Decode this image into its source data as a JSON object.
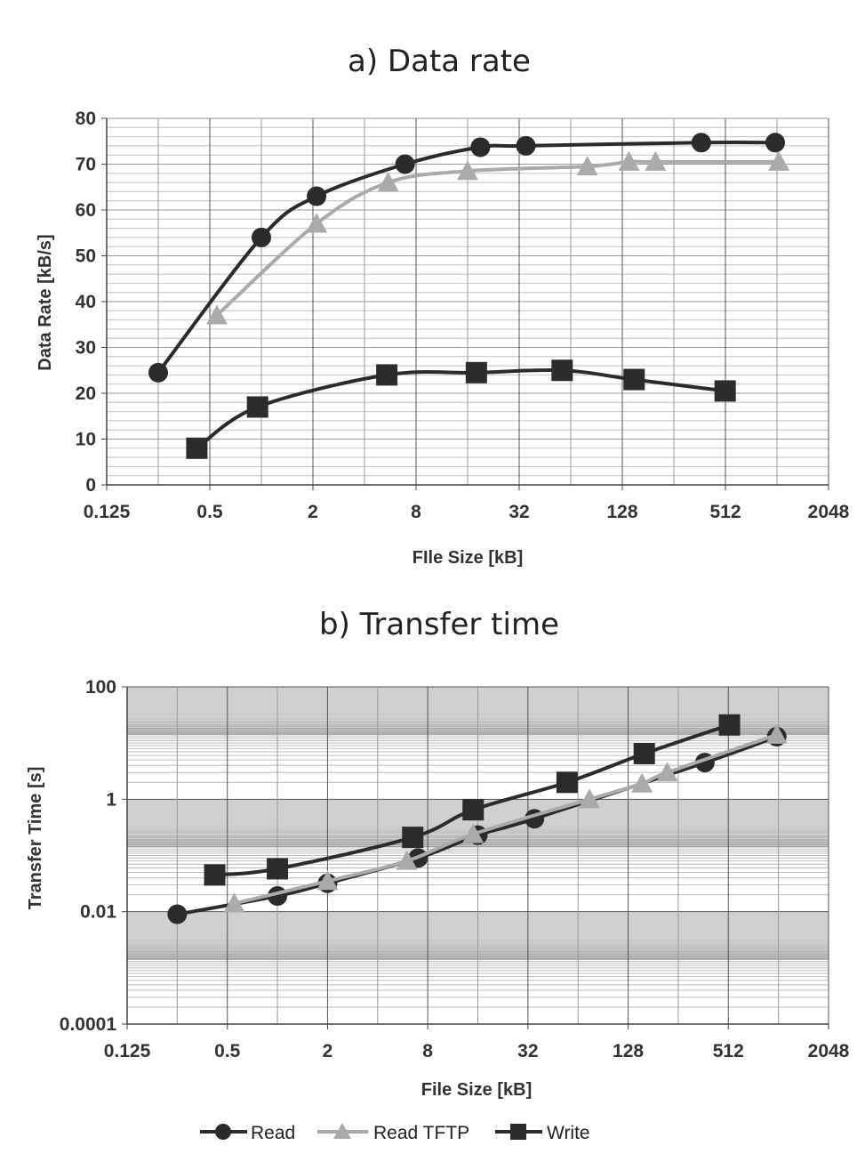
{
  "chart_data": [
    {
      "type": "line",
      "title": "a) Data rate",
      "xlabel": "FIle Size [kB]",
      "ylabel": "Data Rate [kB/s]",
      "xscale": "log2",
      "xlim": [
        0.125,
        2048
      ],
      "ylim": [
        0,
        80
      ],
      "xticks": [
        "0.125",
        "0.5",
        "2",
        "8",
        "32",
        "128",
        "512",
        "2048"
      ],
      "yticks": [
        "0",
        "10",
        "20",
        "30",
        "40",
        "50",
        "60",
        "70",
        "80"
      ],
      "grid": true,
      "series": [
        {
          "name": "Read",
          "marker": "circle",
          "color": "#2b2b2b",
          "x": [
            0.25,
            1,
            2.1,
            6.9,
            19,
            35,
            370,
            1000
          ],
          "y": [
            24.5,
            54,
            63,
            70,
            73.7,
            74,
            74.7,
            74.7
          ]
        },
        {
          "name": "Read TFTP",
          "marker": "triangle",
          "color": "#aaaaaa",
          "x": [
            0.55,
            2.1,
            5.5,
            16,
            80,
            140,
            200,
            1050
          ],
          "y": [
            37,
            57,
            66,
            68.5,
            69.5,
            70.5,
            70.5,
            70.5
          ]
        },
        {
          "name": "Write",
          "marker": "square",
          "color": "#2b2b2b",
          "x": [
            0.42,
            0.95,
            5.4,
            18,
            57,
            150,
            510
          ],
          "y": [
            8,
            17,
            24,
            24.5,
            25,
            23,
            20.5
          ]
        }
      ]
    },
    {
      "type": "line",
      "title": "b) Transfer time",
      "xlabel": "File Size [kB]",
      "ylabel": "Transfer Time [s]",
      "xscale": "log2",
      "yscale": "log10",
      "xlim": [
        0.125,
        2048
      ],
      "ylim": [
        0.0001,
        100
      ],
      "xticks": [
        "0.125",
        "0.5",
        "2",
        "8",
        "32",
        "128",
        "512",
        "2048"
      ],
      "yticks": [
        "0.0001",
        "0.01",
        "1",
        "100"
      ],
      "grid": true,
      "series": [
        {
          "name": "Read",
          "marker": "circle",
          "color": "#2b2b2b",
          "x": [
            0.25,
            1,
            2,
            7,
            16,
            35,
            370,
            1000
          ],
          "y": [
            0.009,
            0.019,
            0.032,
            0.09,
            0.23,
            0.45,
            4.5,
            13
          ]
        },
        {
          "name": "Read TFTP",
          "marker": "triangle",
          "color": "#aaaaaa",
          "x": [
            0.55,
            2,
            6,
            15,
            75,
            155,
            220,
            1000
          ],
          "y": [
            0.014,
            0.035,
            0.08,
            0.24,
            1,
            1.9,
            3,
            14
          ]
        },
        {
          "name": "Write",
          "marker": "square",
          "color": "#2b2b2b",
          "x": [
            0.42,
            1,
            6.5,
            15,
            55,
            160,
            520
          ],
          "y": [
            0.045,
            0.058,
            0.21,
            0.65,
            2,
            6.5,
            21
          ]
        }
      ]
    }
  ],
  "legend": {
    "position": "bottom-center",
    "items": [
      {
        "label": "Read",
        "marker": "circle",
        "color": "#2b2b2b"
      },
      {
        "label": "Read TFTP",
        "marker": "triangle",
        "color": "#aaaaaa"
      },
      {
        "label": "Write",
        "marker": "square",
        "color": "#2b2b2b"
      }
    ]
  }
}
